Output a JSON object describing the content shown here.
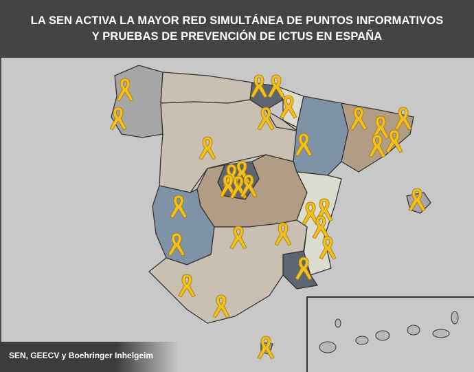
{
  "header": {
    "title_line1": "LA SEN ACTIVA LA MAYOR RED SIMULTÁNEA DE PUNTOS INFORMATIVOS",
    "title_line2": "Y PRUEBAS DE PREVENCIÓN DE ICTUS EN ESPAÑA"
  },
  "credit": "SEN, GEECV y Boehringer Inhelgeim",
  "map": {
    "marker_icon": "yellow-awareness-ribbon-icon",
    "ribbon_count": 31,
    "colors": {
      "background": "#c8c8c8",
      "ribbon": "#f2c01e",
      "blue": "#7f93a6",
      "brown": "#b39c84",
      "beige": "#c9bfb2",
      "gray": "#a6a6a6",
      "dark": "#5d6670",
      "light": "#dcdcd0",
      "border": "#333333"
    }
  }
}
